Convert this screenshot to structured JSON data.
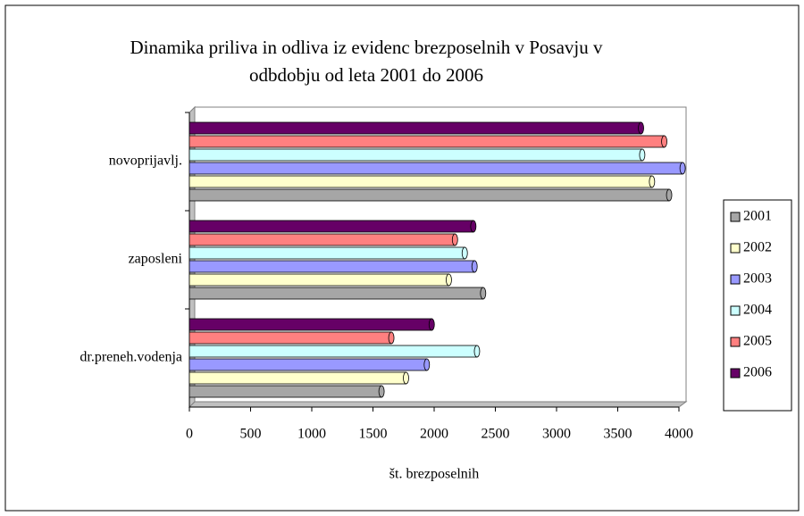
{
  "chart_data": {
    "type": "bar",
    "orientation": "horizontal",
    "title": "Dinamika priliva in odliva iz evidenc brezposelnih v Posavju v odbdobju od leta 2001 do 2006",
    "x_label": "št. brezposelnih",
    "categories": [
      "novoprijavlj.",
      "zaposleni",
      "dr.preneh.vodenja"
    ],
    "series": [
      {
        "name": "2001",
        "color": "#a6a6a6",
        "values": [
          3920,
          2400,
          1570
        ]
      },
      {
        "name": "2002",
        "color": "#ffffcc",
        "values": [
          3780,
          2120,
          1770
        ]
      },
      {
        "name": "2003",
        "color": "#9999ff",
        "values": [
          4030,
          2330,
          1940
        ]
      },
      {
        "name": "2004",
        "color": "#ccffff",
        "values": [
          3700,
          2250,
          2350
        ]
      },
      {
        "name": "2005",
        "color": "#ff8080",
        "values": [
          3880,
          2170,
          1650
        ]
      },
      {
        "name": "2006",
        "color": "#660066",
        "values": [
          3690,
          2320,
          1980
        ]
      }
    ],
    "xlim": [
      0,
      4000
    ],
    "xticks": [
      0,
      500,
      1000,
      1500,
      2000,
      2500,
      3000,
      3500,
      4000
    ],
    "legend": "right"
  }
}
